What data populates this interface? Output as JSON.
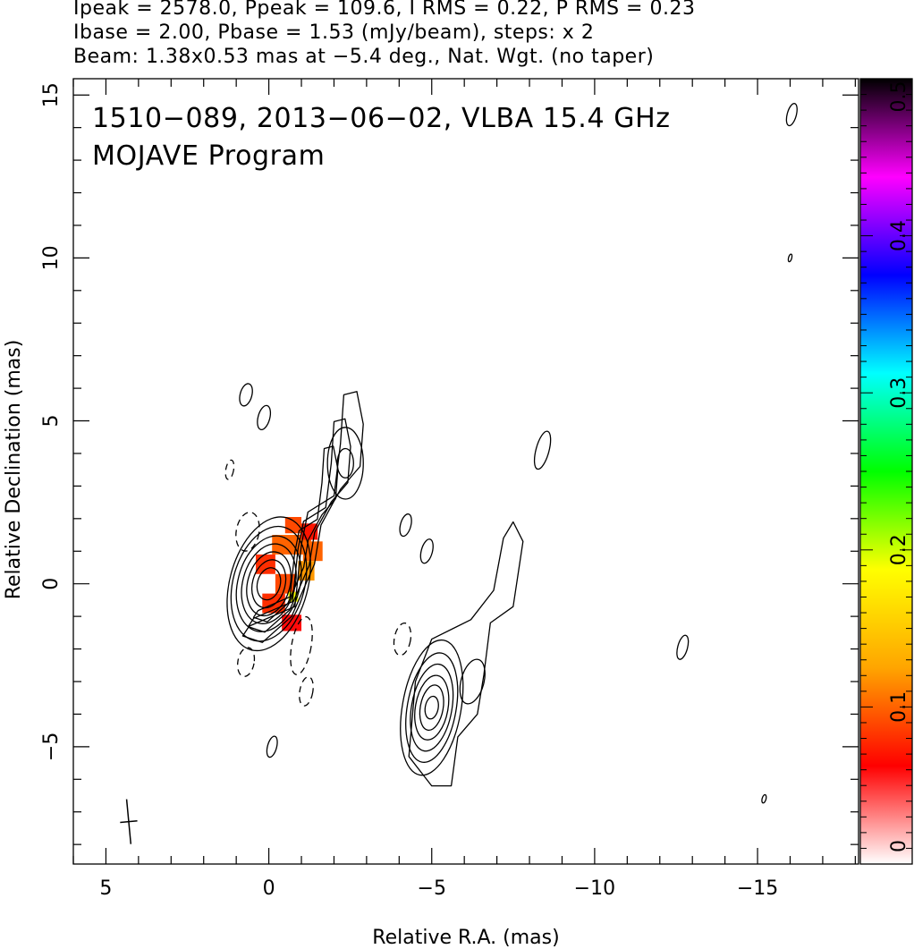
{
  "header": {
    "line1": "Ipeak = 2578.0, Ppeak = 109.6, I RMS = 0.22, P RMS = 0.23",
    "line2": "Ibase = 2.00, Pbase = 1.53 (mJy/beam), steps: x 2",
    "line3": "Beam: 1.38x0.53 mas at −5.4 deg., Nat. Wgt. (no taper)"
  },
  "plot": {
    "title_line1": "1510−089, 2013−06−02, VLBA 15.4 GHz",
    "title_line2": "MOJAVE Program"
  },
  "chart_data": {
    "type": "heatmap",
    "xlabel": "Relative R.A. (mas)",
    "ylabel": "Relative Declination (mas)",
    "xlim": [
      6.0,
      -18.1
    ],
    "ylim": [
      -8.6,
      15.5
    ],
    "x_ticks": [
      5,
      0,
      -5,
      -10,
      -15
    ],
    "x_tick_labels": [
      "5",
      "0",
      "−5",
      "−10",
      "−15"
    ],
    "y_ticks": [
      -5,
      0,
      5,
      10,
      15
    ],
    "y_tick_labels": [
      "−5",
      "0",
      "5",
      "10",
      "15"
    ],
    "colorbar": {
      "min": 0,
      "max": 0.5,
      "ticks": [
        0,
        0.1,
        0.2,
        0.3,
        0.4,
        0.5
      ],
      "tick_labels": [
        "0",
        "0.1",
        "0.2",
        "0.3",
        "0.4",
        "0.5"
      ],
      "stops": [
        "#ffffff",
        "#ff0000",
        "#ffa500",
        "#ffff00",
        "#00ff00",
        "#00ffff",
        "#0000ff",
        "#ff00ff",
        "#000000"
      ]
    },
    "contours": {
      "core": {
        "cx": 0.0,
        "cy": 0.0,
        "angle_deg": 15,
        "axes": [
          [
            0.35,
            0.5
          ],
          [
            0.5,
            0.75
          ],
          [
            0.65,
            1.0
          ],
          [
            0.8,
            1.25
          ],
          [
            0.95,
            1.5
          ],
          [
            1.1,
            1.8
          ],
          [
            1.2,
            2.1
          ]
        ]
      },
      "jet_outer": [
        [
          0.6,
          -1.3
        ],
        [
          -0.8,
          -0.7
        ],
        [
          -1.0,
          1.2
        ],
        [
          -1.2,
          2.2
        ],
        [
          -2.0,
          2.7
        ],
        [
          -2.2,
          4.3
        ],
        [
          -2.3,
          5.8
        ],
        [
          -2.7,
          5.9
        ],
        [
          -2.9,
          4.9
        ],
        [
          -2.8,
          3.6
        ],
        [
          -2.2,
          2.9
        ],
        [
          -1.6,
          1.8
        ],
        [
          -1.4,
          0.6
        ],
        [
          -0.7,
          -1.0
        ],
        [
          0.2,
          -1.8
        ],
        [
          0.8,
          -1.6
        ]
      ],
      "jet_knot": {
        "cx": -2.35,
        "cy": 3.7,
        "axes": [
          [
            0.25,
            0.45
          ],
          [
            0.55,
            1.1
          ]
        ]
      },
      "secondary_outer": [
        [
          -4.3,
          -5.3
        ],
        [
          -4.5,
          -3.0
        ],
        [
          -5.0,
          -1.7
        ],
        [
          -6.2,
          -1.1
        ],
        [
          -6.9,
          -0.2
        ],
        [
          -7.2,
          1.4
        ],
        [
          -7.5,
          1.9
        ],
        [
          -7.8,
          1.3
        ],
        [
          -7.5,
          -0.7
        ],
        [
          -6.8,
          -1.2
        ],
        [
          -6.6,
          -2.8
        ],
        [
          -6.4,
          -4.0
        ],
        [
          -5.8,
          -4.7
        ],
        [
          -5.6,
          -6.2
        ],
        [
          -5.0,
          -6.2
        ]
      ],
      "secondary_core": {
        "cx": -5.0,
        "cy": -3.8,
        "axes": [
          [
            0.2,
            0.35
          ],
          [
            0.35,
            0.7
          ],
          [
            0.5,
            1.0
          ],
          [
            0.62,
            1.35
          ],
          [
            0.75,
            1.7
          ],
          [
            0.9,
            2.1
          ]
        ]
      },
      "small_components": [
        {
          "cx": -6.25,
          "cy": -3.0,
          "rx": 0.35,
          "ry": 0.7
        },
        {
          "cx": 0.7,
          "cy": 5.8,
          "rx": 0.18,
          "ry": 0.35
        },
        {
          "cx": 0.15,
          "cy": 5.1,
          "rx": 0.18,
          "ry": 0.38
        },
        {
          "cx": -4.2,
          "cy": 1.8,
          "rx": 0.16,
          "ry": 0.35
        },
        {
          "cx": -4.85,
          "cy": 1.0,
          "rx": 0.17,
          "ry": 0.38
        },
        {
          "cx": -8.4,
          "cy": 4.1,
          "rx": 0.2,
          "ry": 0.6
        },
        {
          "cx": -12.7,
          "cy": -1.95,
          "rx": 0.15,
          "ry": 0.38
        },
        {
          "cx": -16.0,
          "cy": 10.0,
          "rx": 0.05,
          "ry": 0.12
        },
        {
          "cx": -15.2,
          "cy": -6.6,
          "rx": 0.06,
          "ry": 0.13
        },
        {
          "cx": -16.05,
          "cy": 14.4,
          "rx": 0.14,
          "ry": 0.35
        },
        {
          "cx": -0.1,
          "cy": -5.0,
          "rx": 0.14,
          "ry": 0.33
        }
      ],
      "dashed_components": [
        {
          "cx": 0.65,
          "cy": 1.6,
          "rx": 0.35,
          "ry": 0.6
        },
        {
          "cx": 1.2,
          "cy": 3.5,
          "rx": 0.12,
          "ry": 0.3
        },
        {
          "cx": 0.7,
          "cy": -2.4,
          "rx": 0.25,
          "ry": 0.45
        },
        {
          "cx": -1.0,
          "cy": -1.9,
          "rx": 0.3,
          "ry": 0.9
        },
        {
          "cx": -1.15,
          "cy": -3.3,
          "rx": 0.2,
          "ry": 0.45
        },
        {
          "cx": -4.1,
          "cy": -1.7,
          "rx": 0.25,
          "ry": 0.5
        }
      ]
    },
    "polarization_pixels": [
      {
        "x": -0.5,
        "y": 1.8,
        "w": 0.5,
        "h": 0.5,
        "v": 0.09
      },
      {
        "x": -0.1,
        "y": 1.2,
        "w": 1.2,
        "h": 0.6,
        "v": 0.1
      },
      {
        "x": 0.4,
        "y": 0.6,
        "w": 0.6,
        "h": 0.6,
        "v": 0.08
      },
      {
        "x": -0.2,
        "y": 0.0,
        "w": 0.6,
        "h": 0.6,
        "v": 0.09
      },
      {
        "x": 0.2,
        "y": -0.6,
        "w": 0.7,
        "h": 0.6,
        "v": 0.08
      },
      {
        "x": -0.4,
        "y": -1.2,
        "w": 0.6,
        "h": 0.5,
        "v": 0.06
      },
      {
        "x": -1.0,
        "y": 1.6,
        "w": 0.5,
        "h": 0.5,
        "v": 0.07
      },
      {
        "x": -1.05,
        "y": 1.0,
        "w": 0.6,
        "h": 0.6,
        "v": 0.1
      },
      {
        "x": -0.9,
        "y": 0.4,
        "w": 0.5,
        "h": 0.6,
        "v": 0.12
      },
      {
        "x": -0.6,
        "y": -0.4,
        "w": 0.3,
        "h": 0.3,
        "v": 0.19
      }
    ],
    "beam": {
      "cx": 4.3,
      "cy": -7.3,
      "major": 1.38,
      "minor": 0.53,
      "pa_deg": -5.4
    }
  }
}
